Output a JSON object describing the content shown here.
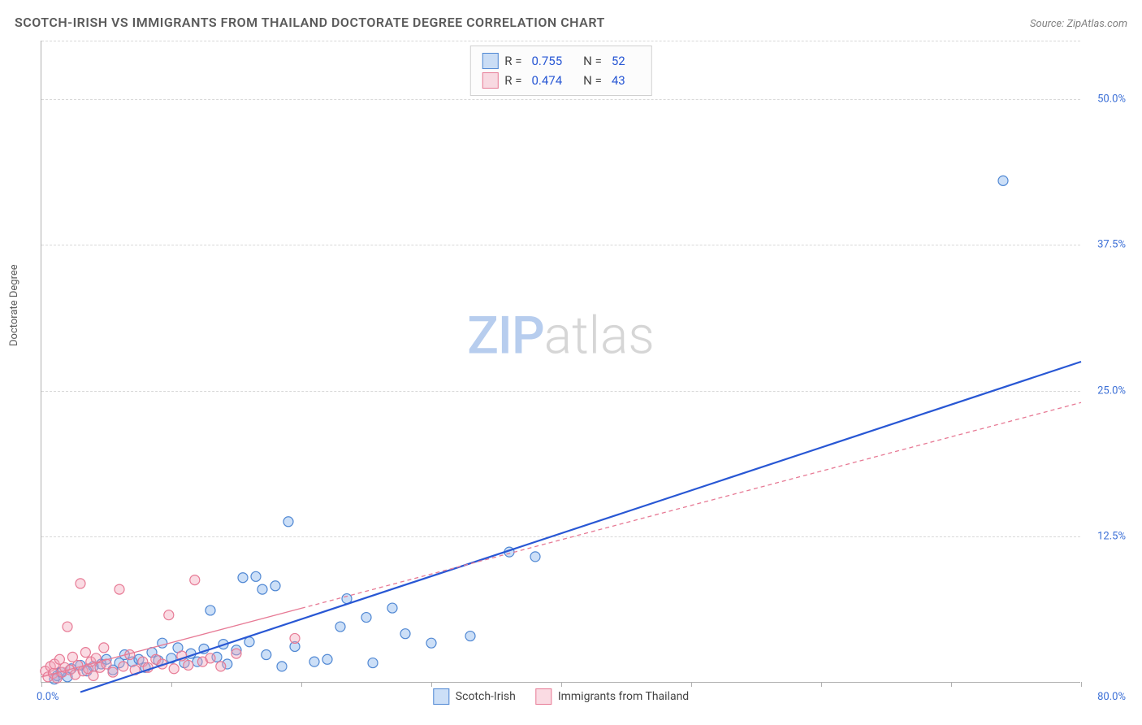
{
  "header": {
    "title": "SCOTCH-IRISH VS IMMIGRANTS FROM THAILAND DOCTORATE DEGREE CORRELATION CHART",
    "source_prefix": "Source: ",
    "source_name": "ZipAtlas.com"
  },
  "y_axis": {
    "label": "Doctorate Degree"
  },
  "chart": {
    "type": "scatter",
    "xlim": [
      0,
      80
    ],
    "ylim": [
      0,
      55
    ],
    "x_ticks": [
      0,
      10,
      20,
      30,
      40,
      50,
      60,
      70,
      80
    ],
    "x_tick_labels": {
      "0": "0.0%",
      "80": "80.0%"
    },
    "y_ticks": [
      12.5,
      25.0,
      37.5,
      50.0
    ],
    "y_tick_labels": [
      "12.5%",
      "25.0%",
      "37.5%",
      "50.0%"
    ],
    "background_color": "#ffffff",
    "grid_color": "#d8d8d8",
    "axis_color": "#b0b0b0",
    "tick_label_color": "#3b6fd6",
    "marker_radius": 6,
    "marker_stroke_width": 1.2,
    "series": [
      {
        "name": "Scotch-Irish",
        "color": "#6ea2e8",
        "fill": "rgba(110,162,232,0.35)",
        "stroke": "#4f87d3",
        "r_value": "0.755",
        "n_value": "52",
        "trend": {
          "x1": 3,
          "y1": -0.8,
          "x2": 80,
          "y2": 27.5,
          "stroke": "#2857d4",
          "width": 2.2,
          "dash": "none"
        },
        "points": [
          [
            1,
            0.3
          ],
          [
            1.2,
            0.6
          ],
          [
            1.5,
            0.9
          ],
          [
            2,
            0.5
          ],
          [
            2.3,
            1.2
          ],
          [
            3,
            1.5
          ],
          [
            3.5,
            1.0
          ],
          [
            4,
            1.4
          ],
          [
            4.6,
            1.6
          ],
          [
            5,
            2.0
          ],
          [
            5.5,
            1.1
          ],
          [
            6,
            1.7
          ],
          [
            6.4,
            2.4
          ],
          [
            7,
            1.8
          ],
          [
            7.5,
            2.0
          ],
          [
            8,
            1.3
          ],
          [
            8.5,
            2.6
          ],
          [
            9,
            1.9
          ],
          [
            9.3,
            3.4
          ],
          [
            10,
            2.1
          ],
          [
            10.5,
            3.0
          ],
          [
            11,
            1.7
          ],
          [
            11.5,
            2.5
          ],
          [
            12,
            1.8
          ],
          [
            12.5,
            2.9
          ],
          [
            13,
            6.2
          ],
          [
            13.5,
            2.2
          ],
          [
            14,
            3.3
          ],
          [
            14.3,
            1.6
          ],
          [
            15,
            2.8
          ],
          [
            15.5,
            9.0
          ],
          [
            16,
            3.5
          ],
          [
            16.5,
            9.1
          ],
          [
            17,
            8.0
          ],
          [
            17.3,
            2.4
          ],
          [
            18,
            8.3
          ],
          [
            18.5,
            1.4
          ],
          [
            19,
            13.8
          ],
          [
            19.5,
            3.1
          ],
          [
            21,
            1.8
          ],
          [
            22,
            2.0
          ],
          [
            23,
            4.8
          ],
          [
            23.5,
            7.2
          ],
          [
            25,
            5.6
          ],
          [
            25.5,
            1.7
          ],
          [
            27,
            6.4
          ],
          [
            28,
            4.2
          ],
          [
            30,
            3.4
          ],
          [
            33,
            4.0
          ],
          [
            36,
            11.2
          ],
          [
            38,
            10.8
          ],
          [
            74,
            43.0
          ]
        ]
      },
      {
        "name": "Immigrants from Thailand",
        "color": "#f2a6b8",
        "fill": "rgba(242,166,184,0.40)",
        "stroke": "#e77a95",
        "r_value": "0.474",
        "n_value": "43",
        "trend": {
          "x1": 0,
          "y1": 0.5,
          "x2": 80,
          "y2": 24.0,
          "stroke": "#e77a95",
          "width": 1.3,
          "dash": "5,4"
        },
        "trend_solid_until": 20,
        "points": [
          [
            0.3,
            1.0
          ],
          [
            0.5,
            0.5
          ],
          [
            0.7,
            1.4
          ],
          [
            0.9,
            0.8
          ],
          [
            1.0,
            1.6
          ],
          [
            1.2,
            0.4
          ],
          [
            1.4,
            2.0
          ],
          [
            1.6,
            0.9
          ],
          [
            1.8,
            1.3
          ],
          [
            2.0,
            4.8
          ],
          [
            2.2,
            1.1
          ],
          [
            2.4,
            2.2
          ],
          [
            2.6,
            0.7
          ],
          [
            2.8,
            1.5
          ],
          [
            3.0,
            8.5
          ],
          [
            3.2,
            1.0
          ],
          [
            3.4,
            2.6
          ],
          [
            3.6,
            1.2
          ],
          [
            3.8,
            1.8
          ],
          [
            4.0,
            0.6
          ],
          [
            4.2,
            2.1
          ],
          [
            4.5,
            1.3
          ],
          [
            4.8,
            3.0
          ],
          [
            5.0,
            1.6
          ],
          [
            5.5,
            0.9
          ],
          [
            6.0,
            8.0
          ],
          [
            6.3,
            1.4
          ],
          [
            6.8,
            2.4
          ],
          [
            7.2,
            1.1
          ],
          [
            7.8,
            1.8
          ],
          [
            8.2,
            1.3
          ],
          [
            8.8,
            2.0
          ],
          [
            9.3,
            1.6
          ],
          [
            9.8,
            5.8
          ],
          [
            10.2,
            1.2
          ],
          [
            10.8,
            2.3
          ],
          [
            11.3,
            1.5
          ],
          [
            11.8,
            8.8
          ],
          [
            12.4,
            1.8
          ],
          [
            13.0,
            2.1
          ],
          [
            13.8,
            1.4
          ],
          [
            15.0,
            2.5
          ],
          [
            19.5,
            3.8
          ]
        ]
      }
    ]
  },
  "legend_top": {
    "r_label": "R =",
    "n_label": "N ="
  },
  "legend_bottom": {
    "items": [
      "Scotch-Irish",
      "Immigrants from Thailand"
    ]
  },
  "watermark": {
    "zip": "ZIP",
    "atlas": "atlas"
  }
}
